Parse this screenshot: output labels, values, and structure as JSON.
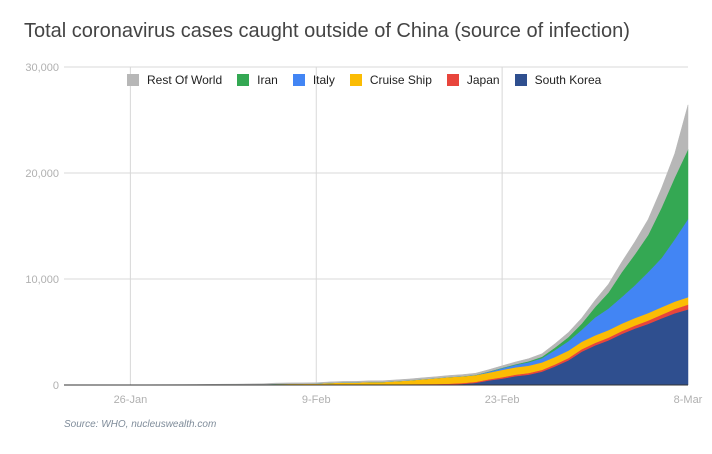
{
  "chart_data": {
    "type": "area",
    "stacked": true,
    "title": "Total coronavirus cases caught outside of China (source of infection)",
    "source": "Source: WHO, nucleuswealth.com",
    "x_dates": [
      "21-Jan",
      "22-Jan",
      "23-Jan",
      "24-Jan",
      "25-Jan",
      "26-Jan",
      "27-Jan",
      "28-Jan",
      "29-Jan",
      "30-Jan",
      "31-Jan",
      "1-Feb",
      "2-Feb",
      "3-Feb",
      "4-Feb",
      "5-Feb",
      "6-Feb",
      "7-Feb",
      "8-Feb",
      "9-Feb",
      "10-Feb",
      "11-Feb",
      "12-Feb",
      "13-Feb",
      "14-Feb",
      "15-Feb",
      "16-Feb",
      "17-Feb",
      "18-Feb",
      "19-Feb",
      "20-Feb",
      "21-Feb",
      "22-Feb",
      "23-Feb",
      "24-Feb",
      "25-Feb",
      "26-Feb",
      "27-Feb",
      "28-Feb",
      "29-Feb",
      "1-Mar",
      "2-Mar",
      "3-Mar",
      "4-Mar",
      "5-Mar",
      "6-Mar",
      "7-Mar",
      "8-Mar"
    ],
    "x_ticks": [
      "26-Jan",
      "9-Feb",
      "23-Feb",
      "8-Mar"
    ],
    "y_ticks": [
      "0",
      "10,000",
      "20,000",
      "30,000"
    ],
    "ylim": [
      0,
      30000
    ],
    "legend_position": "top",
    "series": [
      {
        "name": "South Korea",
        "color": "#2f4f8f",
        "values": [
          1,
          1,
          1,
          2,
          2,
          2,
          3,
          3,
          4,
          4,
          6,
          11,
          15,
          15,
          16,
          19,
          23,
          24,
          24,
          27,
          27,
          28,
          28,
          28,
          28,
          28,
          29,
          30,
          31,
          51,
          104,
          204,
          433,
          602,
          833,
          977,
          1261,
          1766,
          2337,
          3150,
          3736,
          4212,
          4812,
          5328,
          5766,
          6284,
          6767,
          7134
        ]
      },
      {
        "name": "Japan",
        "color": "#e8453c",
        "values": [
          1,
          1,
          1,
          1,
          2,
          2,
          2,
          4,
          5,
          7,
          8,
          10,
          13,
          14,
          16,
          18,
          21,
          25,
          26,
          28,
          30,
          32,
          34,
          36,
          40,
          46,
          53,
          59,
          66,
          76,
          85,
          93,
          105,
          132,
          144,
          157,
          164,
          186,
          210,
          230,
          239,
          254,
          268,
          284,
          317,
          348,
          407,
          455
        ]
      },
      {
        "name": "Cruise Ship",
        "color": "#fbbc04",
        "values": [
          0,
          0,
          0,
          0,
          0,
          0,
          0,
          0,
          0,
          0,
          0,
          0,
          0,
          0,
          10,
          20,
          61,
          64,
          64,
          70,
          135,
          174,
          174,
          218,
          218,
          285,
          355,
          454,
          542,
          621,
          634,
          634,
          634,
          691,
          691,
          691,
          705,
          705,
          705,
          705,
          705,
          706,
          706,
          706,
          706,
          706,
          696,
          696
        ]
      },
      {
        "name": "Italy",
        "color": "#4285f4",
        "values": [
          0,
          0,
          0,
          0,
          0,
          0,
          0,
          0,
          0,
          0,
          2,
          2,
          2,
          2,
          2,
          2,
          2,
          3,
          3,
          3,
          3,
          3,
          3,
          3,
          3,
          3,
          3,
          3,
          3,
          3,
          3,
          3,
          79,
          157,
          229,
          322,
          400,
          650,
          888,
          1128,
          1694,
          2036,
          2502,
          3089,
          3858,
          4636,
          5883,
          7375
        ]
      },
      {
        "name": "Iran",
        "color": "#34a853",
        "values": [
          0,
          0,
          0,
          0,
          0,
          0,
          0,
          0,
          0,
          0,
          0,
          0,
          0,
          0,
          0,
          0,
          0,
          0,
          0,
          0,
          0,
          0,
          0,
          0,
          0,
          0,
          0,
          0,
          0,
          2,
          5,
          18,
          28,
          43,
          61,
          95,
          139,
          245,
          388,
          593,
          978,
          1501,
          2336,
          2922,
          3513,
          4747,
          5823,
          6566
        ]
      },
      {
        "name": "Rest Of World",
        "color": "#b7b7b7",
        "values": [
          3,
          4,
          6,
          8,
          10,
          14,
          17,
          22,
          25,
          30,
          35,
          42,
          48,
          55,
          60,
          68,
          74,
          80,
          85,
          90,
          95,
          100,
          106,
          110,
          116,
          122,
          128,
          134,
          140,
          146,
          152,
          160,
          170,
          190,
          215,
          245,
          280,
          360,
          440,
          520,
          640,
          790,
          960,
          1190,
          1470,
          1830,
          2250,
          4200
        ]
      }
    ]
  }
}
